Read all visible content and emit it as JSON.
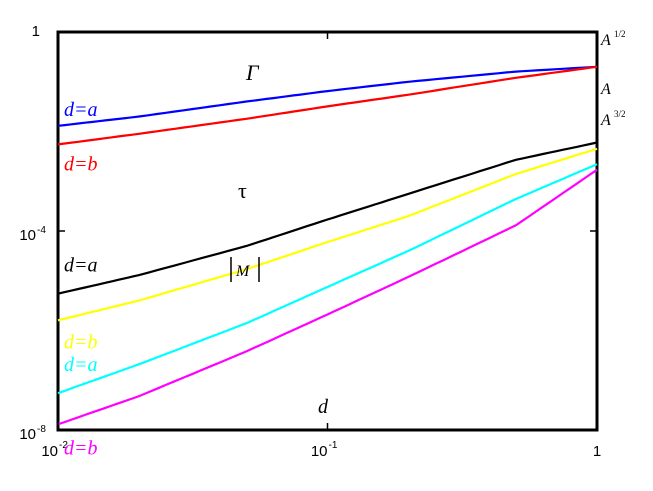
{
  "chart_data": {
    "type": "line",
    "title": "",
    "xlabel": "d",
    "ylabel": "",
    "xscale": "log",
    "yscale": "log",
    "xlim": [
      0.01,
      1
    ],
    "ylim": [
      1e-08,
      1
    ],
    "grid": false,
    "x_ticks": [
      {
        "base": "10",
        "exp": "-2",
        "value": 0.01
      },
      {
        "base": "10",
        "exp": "-1",
        "value": 0.1
      },
      {
        "base": "1",
        "exp": "",
        "value": 1
      }
    ],
    "y_ticks": [
      {
        "base": "10",
        "exp": "-8",
        "value": 1e-08
      },
      {
        "base": "10",
        "exp": "-4",
        "value": 0.0001
      },
      {
        "base": "1",
        "exp": "",
        "value": 1
      }
    ],
    "series": [
      {
        "key": "gamma_a",
        "color": "#0000ff",
        "label": "d=a",
        "x": [
          0.01,
          0.02,
          0.05,
          0.1,
          0.2,
          0.5,
          1
        ],
        "y": [
          0.013,
          0.02,
          0.04,
          0.065,
          0.1,
          0.16,
          0.2
        ]
      },
      {
        "key": "gamma_b",
        "color": "#ff0000",
        "label": "d=b",
        "x": [
          0.01,
          0.02,
          0.05,
          0.1,
          0.2,
          0.5,
          1
        ],
        "y": [
          0.0055,
          0.009,
          0.018,
          0.032,
          0.055,
          0.12,
          0.2
        ]
      },
      {
        "key": "tau_a",
        "color": "#000000",
        "label": "d=a",
        "x": [
          0.01,
          0.02,
          0.05,
          0.1,
          0.2,
          0.5,
          1
        ],
        "y": [
          5.5e-06,
          1.3e-05,
          5e-05,
          0.00017,
          0.00056,
          0.0027,
          0.006
        ]
      },
      {
        "key": "tau_b",
        "color": "#ffff00",
        "label": "d=b",
        "x": [
          0.01,
          0.02,
          0.05,
          0.1,
          0.2,
          0.5,
          1
        ],
        "y": [
          1.6e-06,
          4e-06,
          1.7e-05,
          6e-05,
          0.0002,
          0.0014,
          0.0045
        ]
      },
      {
        "key": "m_a",
        "color": "#00ffff",
        "label": "d=a",
        "x": [
          0.01,
          0.02,
          0.05,
          0.1,
          0.2,
          0.5,
          1
        ],
        "y": [
          5.5e-08,
          2.1e-07,
          1.4e-06,
          7.5e-06,
          4e-05,
          0.00044,
          0.0022
        ]
      },
      {
        "key": "m_b",
        "color": "#ff00ff",
        "label": "d=b",
        "x": [
          0.01,
          0.02,
          0.05,
          0.1,
          0.2,
          0.5,
          1
        ],
        "y": [
          1.3e-08,
          4.8e-08,
          3.8e-07,
          2.1e-06,
          1.2e-05,
          0.00013,
          0.0017
        ]
      }
    ],
    "curve_labels": [
      {
        "key": "gamma",
        "text": "Γ"
      },
      {
        "key": "tau",
        "text": "τ"
      },
      {
        "key": "m",
        "text": "M"
      }
    ],
    "right_labels": [
      {
        "key": "r1",
        "base": "A",
        "exp": "1/2"
      },
      {
        "key": "r2",
        "base": "A",
        "exp": ""
      },
      {
        "key": "r3",
        "base": "A",
        "exp": "3/2"
      }
    ]
  }
}
